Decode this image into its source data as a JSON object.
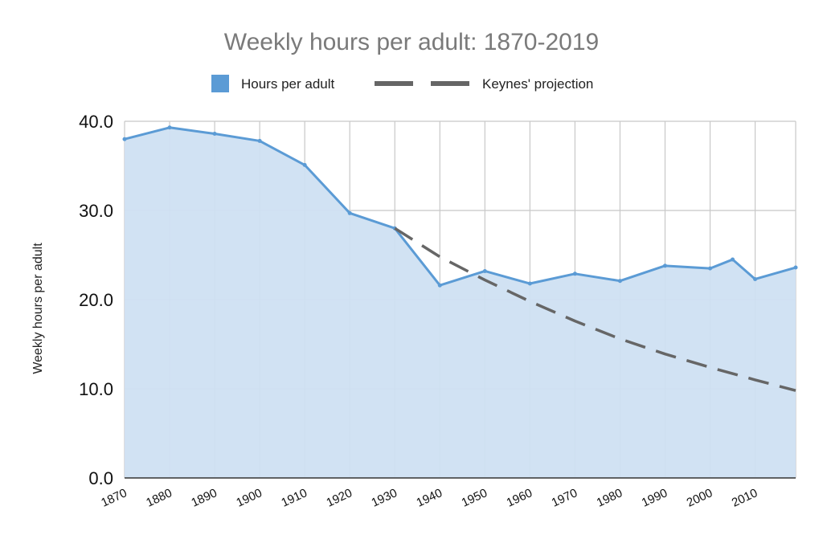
{
  "chart_data": {
    "type": "area",
    "title": "Weekly hours per adult: 1870-2019",
    "xlabel": "",
    "ylabel": "Weekly hours per adult",
    "xlim": [
      1870,
      2019
    ],
    "ylim": [
      0,
      40
    ],
    "y_ticks": [
      "0.0",
      "10.0",
      "20.0",
      "30.0",
      "40.0"
    ],
    "y_tick_values": [
      0,
      10,
      20,
      30,
      40
    ],
    "x_ticks": [
      "1870",
      "1880",
      "1890",
      "1900",
      "1910",
      "1920",
      "1930",
      "1940",
      "1950",
      "1960",
      "1970",
      "1980",
      "1990",
      "2000",
      "2010"
    ],
    "x_tick_values": [
      1870,
      1880,
      1890,
      1900,
      1910,
      1920,
      1930,
      1940,
      1950,
      1960,
      1970,
      1980,
      1990,
      2000,
      2010
    ],
    "grid": true,
    "legend_position": "top-center",
    "series": [
      {
        "name": "Hours per adult",
        "kind": "area",
        "color": "#5b9bd5",
        "fill": "#cfe0f2",
        "x": [
          1870,
          1880,
          1890,
          1900,
          1910,
          1920,
          1930,
          1940,
          1950,
          1960,
          1970,
          1980,
          1990,
          2000,
          2005,
          2010,
          2019
        ],
        "values": [
          38.0,
          39.3,
          38.6,
          37.8,
          35.1,
          29.7,
          28.0,
          21.6,
          23.2,
          21.8,
          22.9,
          22.1,
          23.8,
          23.5,
          24.5,
          22.3,
          23.6
        ]
      },
      {
        "name": "Keynes' projection",
        "kind": "dashed-line",
        "color": "#666666",
        "x": [
          1930,
          1940,
          1950,
          1960,
          1970,
          1980,
          1990,
          2000,
          2010,
          2019
        ],
        "values": [
          28.0,
          24.8,
          22.2,
          19.8,
          17.6,
          15.6,
          13.9,
          12.4,
          11.0,
          9.8
        ]
      }
    ]
  }
}
